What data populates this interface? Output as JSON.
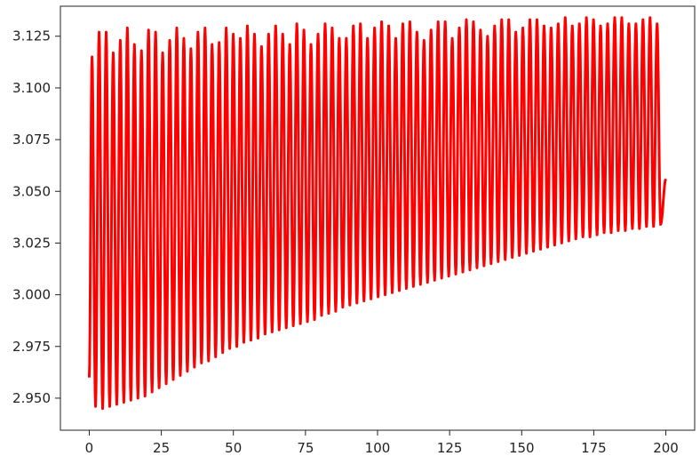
{
  "chart_data": {
    "type": "line",
    "title": "",
    "xlabel": "",
    "ylabel": "",
    "xlim": [
      -10,
      210
    ],
    "ylim": [
      2.9345,
      3.1395
    ],
    "grid": false,
    "legend": "none",
    "x_ticks": [
      0,
      25,
      50,
      75,
      100,
      125,
      150,
      175,
      200
    ],
    "x_tick_labels": [
      "0",
      "25",
      "50",
      "75",
      "100",
      "125",
      "150",
      "175",
      "200"
    ],
    "y_ticks": [
      2.95,
      2.975,
      3.0,
      3.025,
      3.05,
      3.075,
      3.1,
      3.125
    ],
    "y_tick_labels": [
      "2.950",
      "2.975",
      "3.000",
      "3.025",
      "3.050",
      "3.075",
      "3.100",
      "3.125"
    ],
    "series": [
      {
        "color": "#ff0000",
        "x_start": 0,
        "x_end": 200,
        "start_value": 2.96,
        "end_value": 3.056,
        "period": 2.45,
        "peaks": [
          3.115,
          3.127,
          3.127,
          3.117,
          3.123,
          3.129,
          3.121,
          3.118,
          3.128,
          3.127,
          3.117,
          3.123,
          3.129,
          3.124,
          3.119,
          3.127,
          3.129,
          3.121,
          3.122,
          3.129,
          3.126,
          3.124,
          3.13,
          3.126,
          3.12,
          3.126,
          3.13,
          3.126,
          3.121,
          3.131,
          3.128,
          3.121,
          3.126,
          3.131,
          3.129,
          3.124,
          3.124,
          3.13,
          3.131,
          3.124,
          3.129,
          3.132,
          3.13,
          3.124,
          3.131,
          3.132,
          3.127,
          3.123,
          3.128,
          3.132,
          3.132,
          3.124,
          3.129,
          3.133,
          3.132,
          3.128,
          3.125,
          3.13,
          3.133,
          3.133,
          3.127,
          3.129,
          3.133,
          3.133,
          3.13,
          3.129,
          3.131,
          3.134,
          3.13,
          3.131,
          3.134,
          3.133,
          3.13,
          3.131,
          3.134,
          3.134,
          3.131,
          3.131,
          3.133,
          3.134,
          3.131,
          3.127
        ],
        "troughs": [
          2.946,
          2.945,
          2.946,
          2.947,
          2.948,
          2.949,
          2.95,
          2.951,
          2.953,
          2.955,
          2.957,
          2.959,
          2.961,
          2.963,
          2.965,
          2.967,
          2.968,
          2.97,
          2.972,
          2.974,
          2.975,
          2.977,
          2.978,
          2.979,
          2.981,
          2.982,
          2.983,
          2.984,
          2.985,
          2.986,
          2.987,
          2.988,
          2.99,
          2.991,
          2.992,
          2.994,
          2.995,
          2.996,
          2.997,
          2.998,
          2.999,
          3.0,
          3.001,
          3.002,
          3.003,
          3.004,
          3.005,
          3.006,
          3.007,
          3.008,
          3.009,
          3.01,
          3.011,
          3.012,
          3.013,
          3.014,
          3.015,
          3.016,
          3.017,
          3.018,
          3.019,
          3.02,
          3.021,
          3.022,
          3.023,
          3.024,
          3.025,
          3.026,
          3.027,
          3.028,
          3.028,
          3.029,
          3.03,
          3.03,
          3.031,
          3.031,
          3.032,
          3.032,
          3.033,
          3.033,
          3.034
        ]
      }
    ]
  }
}
